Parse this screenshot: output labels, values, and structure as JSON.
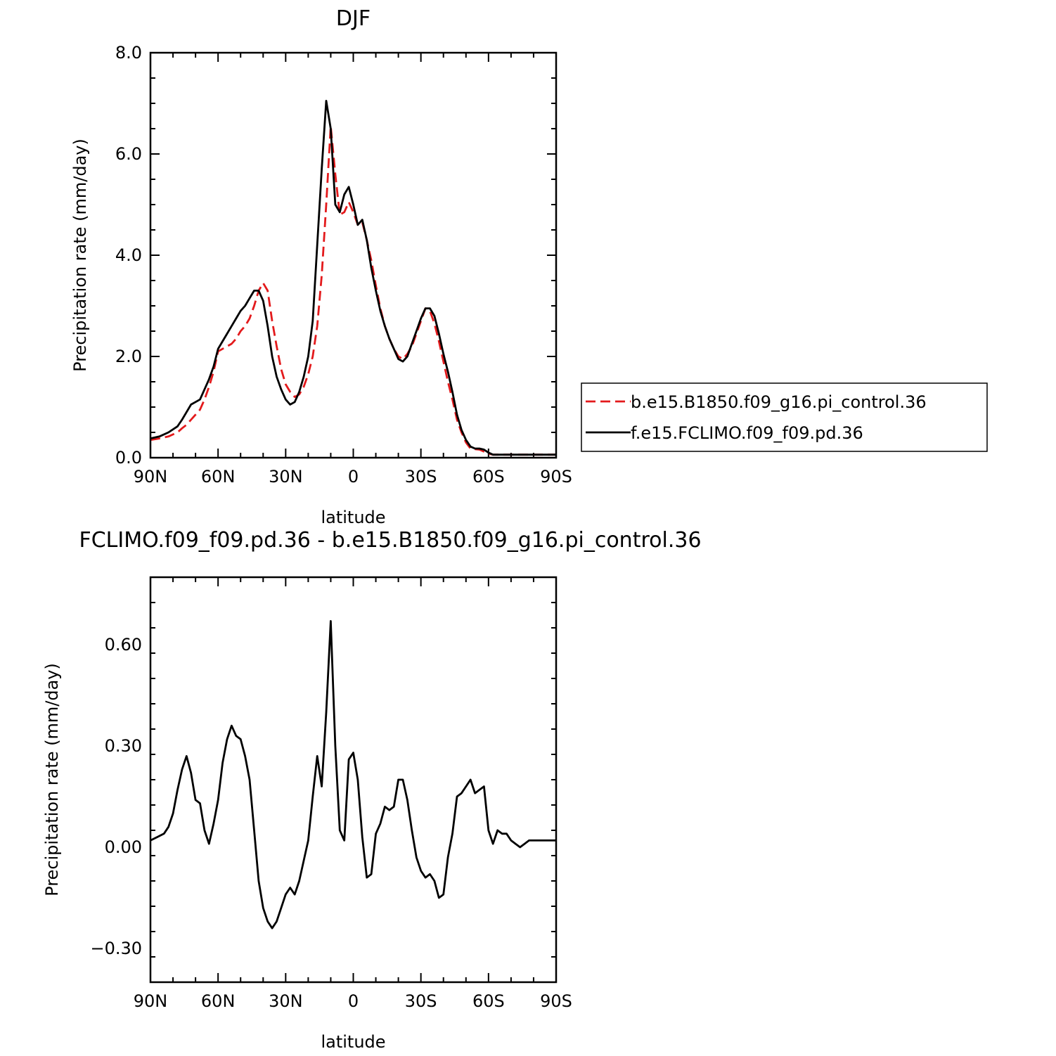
{
  "chart_data": [
    {
      "type": "line",
      "title": "DJF",
      "xlabel": "latitude",
      "ylabel": "Precipitation rate (mm/day)",
      "xlim": [
        90,
        -90
      ],
      "ylim": [
        0,
        8
      ],
      "xticks": [
        90,
        60,
        30,
        0,
        -30,
        -60,
        -90
      ],
      "xtick_labels": [
        "90N",
        "60N",
        "30N",
        "0",
        "30S",
        "60S",
        "90S"
      ],
      "yticks": [
        0,
        2,
        4,
        6,
        8
      ],
      "ytick_labels": [
        "0.0",
        "2.0",
        "4.0",
        "6.0",
        "8.0"
      ],
      "grid": false,
      "legend_position": "right",
      "series": [
        {
          "name": "b.e15.B1850.f09_g16.pi_control.36",
          "color": "#e31a1c",
          "dash": "dashed",
          "x": [
            90,
            86,
            82,
            78,
            76,
            74,
            72,
            70,
            68,
            66,
            64,
            62,
            60,
            58,
            56,
            54,
            52,
            50,
            48,
            46,
            44,
            42,
            40,
            38,
            36,
            34,
            32,
            30,
            28,
            26,
            24,
            22,
            20,
            18,
            16,
            14,
            12,
            10,
            8,
            6,
            4,
            2,
            0,
            -2,
            -4,
            -6,
            -8,
            -10,
            -12,
            -14,
            -16,
            -18,
            -20,
            -22,
            -24,
            -26,
            -28,
            -30,
            -32,
            -34,
            -36,
            -38,
            -40,
            -42,
            -44,
            -46,
            -48,
            -50,
            -52,
            -54,
            -56,
            -58,
            -60,
            -62,
            -64,
            -66,
            -68,
            -70,
            -72,
            -74,
            -76,
            -78,
            -80,
            -82,
            -84,
            -86,
            -88,
            -90
          ],
          "values": [
            0.35,
            0.38,
            0.42,
            0.5,
            0.58,
            0.65,
            0.75,
            0.85,
            0.95,
            1.15,
            1.4,
            1.7,
            2.1,
            2.15,
            2.2,
            2.25,
            2.35,
            2.5,
            2.6,
            2.75,
            3.0,
            3.3,
            3.45,
            3.3,
            2.7,
            2.2,
            1.75,
            1.45,
            1.3,
            1.2,
            1.25,
            1.4,
            1.65,
            2.0,
            2.6,
            3.6,
            5.0,
            6.55,
            5.6,
            4.8,
            4.85,
            5.05,
            4.85,
            4.6,
            4.65,
            4.3,
            3.9,
            3.4,
            2.95,
            2.6,
            2.35,
            2.15,
            2.0,
            1.95,
            2.05,
            2.2,
            2.45,
            2.7,
            2.95,
            2.9,
            2.65,
            2.3,
            1.9,
            1.5,
            1.15,
            0.75,
            0.5,
            0.3,
            0.18,
            0.17,
            0.16,
            0.12,
            0.08,
            0.06,
            0.06,
            0.06,
            0.06,
            0.06,
            0.06,
            0.06,
            0.06,
            0.06,
            0.06,
            0.06,
            0.06,
            0.06,
            0.06,
            0.06
          ]
        },
        {
          "name": "f.e15.FCLIMO.f09_f09.pd.36",
          "color": "#000000",
          "dash": "solid",
          "x": [
            90,
            86,
            82,
            78,
            76,
            74,
            72,
            70,
            68,
            66,
            64,
            62,
            60,
            58,
            56,
            54,
            52,
            50,
            48,
            46,
            44,
            42,
            40,
            38,
            36,
            34,
            32,
            30,
            28,
            26,
            24,
            22,
            20,
            18,
            16,
            14,
            12,
            10,
            8,
            6,
            4,
            2,
            0,
            -2,
            -4,
            -6,
            -8,
            -10,
            -12,
            -14,
            -16,
            -18,
            -20,
            -22,
            -24,
            -26,
            -28,
            -30,
            -32,
            -34,
            -36,
            -38,
            -40,
            -42,
            -44,
            -46,
            -48,
            -50,
            -52,
            -54,
            -56,
            -58,
            -60,
            -62,
            -64,
            -66,
            -68,
            -70,
            -72,
            -74,
            -76,
            -78,
            -80,
            -82,
            -84,
            -86,
            -88,
            -90
          ],
          "values": [
            0.38,
            0.42,
            0.5,
            0.62,
            0.75,
            0.9,
            1.05,
            1.1,
            1.15,
            1.35,
            1.55,
            1.8,
            2.15,
            2.3,
            2.45,
            2.6,
            2.75,
            2.9,
            3.0,
            3.15,
            3.3,
            3.3,
            3.1,
            2.6,
            2.0,
            1.6,
            1.35,
            1.15,
            1.05,
            1.1,
            1.3,
            1.6,
            2.0,
            2.7,
            4.2,
            5.7,
            7.05,
            6.5,
            5.0,
            4.85,
            5.2,
            5.35,
            5.0,
            4.6,
            4.7,
            4.3,
            3.75,
            3.3,
            2.9,
            2.6,
            2.35,
            2.15,
            1.95,
            1.9,
            2.0,
            2.25,
            2.5,
            2.75,
            2.95,
            2.95,
            2.8,
            2.45,
            2.05,
            1.7,
            1.3,
            0.85,
            0.55,
            0.35,
            0.22,
            0.18,
            0.18,
            0.16,
            0.1,
            0.06,
            0.06,
            0.06,
            0.06,
            0.06,
            0.06,
            0.06,
            0.06,
            0.06,
            0.06,
            0.06,
            0.06,
            0.06,
            0.06,
            0.06
          ]
        }
      ]
    },
    {
      "type": "line",
      "title": "FCLIMO.f09_f09.pd.36 - b.e15.B1850.f09_g16.pi_control.36",
      "xlabel": "latitude",
      "ylabel": "Precipitation rate (mm/day)",
      "xlim": [
        90,
        -90
      ],
      "ylim": [
        -0.4,
        0.8
      ],
      "xticks": [
        90,
        60,
        30,
        0,
        -30,
        -60,
        -90
      ],
      "xtick_labels": [
        "90N",
        "60N",
        "30N",
        "0",
        "30S",
        "60S",
        "90S"
      ],
      "yticks": [
        -0.3,
        0,
        0.3,
        0.6
      ],
      "ytick_labels": [
        "−0.30",
        "0.00",
        "0.30",
        "0.60"
      ],
      "grid": false,
      "series": [
        {
          "color": "#000000",
          "dash": "solid",
          "x": [
            90,
            87,
            84,
            82,
            80,
            78,
            76,
            74,
            72,
            70,
            68,
            66,
            64,
            62,
            60,
            58,
            56,
            54,
            52,
            50,
            48,
            46,
            44,
            42,
            40,
            38,
            36,
            34,
            32,
            30,
            28,
            26,
            24,
            22,
            20,
            18,
            16,
            14,
            12,
            10,
            8,
            6,
            4,
            2,
            0,
            -2,
            -4,
            -6,
            -8,
            -10,
            -12,
            -14,
            -16,
            -18,
            -20,
            -22,
            -24,
            -26,
            -28,
            -30,
            -32,
            -34,
            -36,
            -38,
            -40,
            -42,
            -44,
            -46,
            -48,
            -50,
            -52,
            -54,
            -56,
            -58,
            -60,
            -62,
            -64,
            -66,
            -68,
            -70,
            -72,
            -74,
            -76,
            -78,
            -80,
            -82,
            -84,
            -86,
            -88,
            -90
          ],
          "values": [
            0.02,
            0.03,
            0.04,
            0.06,
            0.1,
            0.17,
            0.23,
            0.27,
            0.22,
            0.14,
            0.13,
            0.05,
            0.01,
            0.07,
            0.14,
            0.25,
            0.32,
            0.36,
            0.33,
            0.32,
            0.27,
            0.2,
            0.05,
            -0.1,
            -0.18,
            -0.22,
            -0.24,
            -0.22,
            -0.18,
            -0.14,
            -0.12,
            -0.14,
            -0.1,
            -0.04,
            0.02,
            0.15,
            0.27,
            0.18,
            0.4,
            0.67,
            0.3,
            0.05,
            0.02,
            0.26,
            0.28,
            0.2,
            0.03,
            -0.09,
            -0.08,
            0.04,
            0.07,
            0.12,
            0.11,
            0.12,
            0.2,
            0.2,
            0.14,
            0.05,
            -0.03,
            -0.07,
            -0.09,
            -0.08,
            -0.1,
            -0.15,
            -0.14,
            -0.03,
            0.04,
            0.15,
            0.16,
            0.18,
            0.2,
            0.16,
            0.17,
            0.18,
            0.05,
            0.01,
            0.05,
            0.04,
            0.04,
            0.02,
            0.01,
            0.0,
            0.01,
            0.02,
            0.02,
            0.02,
            0.02,
            0.02,
            0.02,
            0.02
          ]
        }
      ]
    }
  ]
}
